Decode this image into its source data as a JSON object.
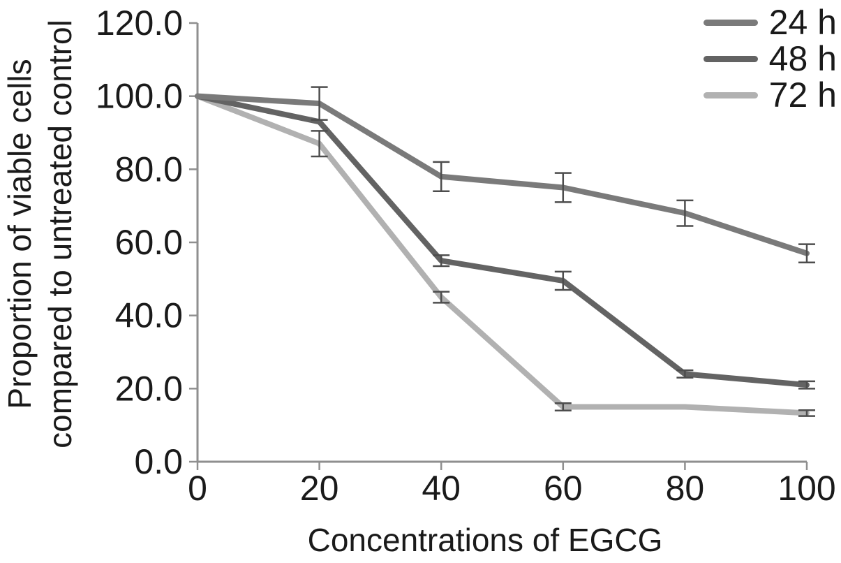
{
  "figure": {
    "background": "#ffffff",
    "text_color": "#1a1a1a",
    "axis_color": "#8f8f8f",
    "error_bar_color": "#4d4d4d"
  },
  "chart_data": {
    "type": "line",
    "title": "",
    "xlabel": "Concentrations of EGCG",
    "ylabel_line1": "Proportion of viable cells",
    "ylabel_line2": "compared to untreated control",
    "xlim": [
      0,
      100
    ],
    "ylim": [
      0,
      120
    ],
    "grid": false,
    "legend_position": "top-right",
    "x": [
      0,
      20,
      40,
      60,
      80,
      100
    ],
    "x_tick_labels": [
      "0",
      "20",
      "40",
      "60",
      "80",
      "100"
    ],
    "y_ticks": [
      0,
      20,
      40,
      60,
      80,
      100,
      120
    ],
    "y_tick_labels": [
      "0.0",
      "20.0",
      "40.0",
      "60.0",
      "80.0",
      "100.0",
      "120.0"
    ],
    "series": [
      {
        "name": "24 h",
        "color": "#7a7a7a",
        "values": [
          100,
          98,
          78,
          75,
          68,
          57
        ],
        "errors": [
          0,
          4.5,
          4,
          4,
          3.5,
          2.5
        ]
      },
      {
        "name": "48 h",
        "color": "#636363",
        "values": [
          100,
          93,
          55,
          49.5,
          24,
          21
        ],
        "errors": [
          0,
          0,
          1.5,
          2.5,
          1,
          1
        ]
      },
      {
        "name": "72 h",
        "color": "#b1b1b1",
        "values": [
          100,
          87,
          45,
          15,
          15,
          13.3
        ],
        "errors": [
          0,
          3.5,
          1.5,
          1,
          0,
          0.8
        ]
      }
    ]
  }
}
